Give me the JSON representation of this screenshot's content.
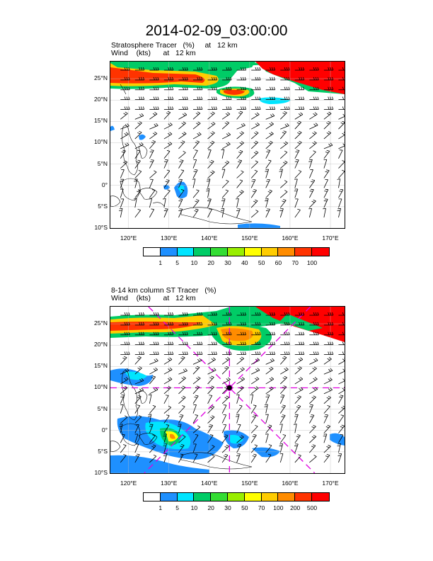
{
  "title": "2014-02-09_03:00:00",
  "colors": {
    "levels": [
      "#ffffff",
      "#1e90ff",
      "#00e5ff",
      "#00cc66",
      "#33dd33",
      "#99ee00",
      "#ffff00",
      "#ffcc00",
      "#ff8c00",
      "#ff3300",
      "#ff0000"
    ],
    "guide_line": "#e000e0",
    "land": "#000000"
  },
  "panels": [
    {
      "name": "stratosphere-tracer",
      "subtitle_line1": "Stratosphere Tracer   (%)     at   12 km",
      "subtitle_line2": "Wind    (kts)      at   12 km",
      "colorbar_labels": [
        "1",
        "5",
        "10",
        "20",
        "30",
        "40",
        "50",
        "60",
        "70",
        "100"
      ]
    },
    {
      "name": "column-st-tracer",
      "subtitle_line1": "8-14 km column ST Tracer   (%)",
      "subtitle_line2": "Wind    (kts)      at   12 km",
      "colorbar_labels": [
        "1",
        "5",
        "10",
        "20",
        "30",
        "50",
        "70",
        "100",
        "200",
        "500"
      ]
    }
  ],
  "lat_labels": [
    "25°N",
    "20°N",
    "15°N",
    "10°N",
    "5°N",
    "0°",
    "5°S",
    "10°S"
  ],
  "lon_labels": [
    "120°E",
    "130°E",
    "140°E",
    "150°E",
    "160°E",
    "170°E"
  ],
  "chart_data": {
    "type": "map",
    "extent": {
      "lon_min": 115.5,
      "lon_max": 173.5,
      "lat_min": -10,
      "lat_max": 29
    },
    "lat_ticks": [
      25,
      20,
      15,
      10,
      5,
      0,
      -5,
      -10
    ],
    "lon_ticks": [
      120,
      130,
      140,
      150,
      160,
      170
    ],
    "guide_center": {
      "lon": 145,
      "lat": 10
    }
  }
}
